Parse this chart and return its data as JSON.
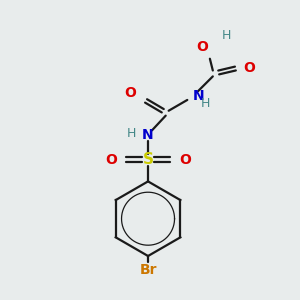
{
  "background_color": "#e8ecec",
  "bond_color": "#1a1a1a",
  "bond_lw": 1.6,
  "figsize": [
    3.0,
    3.0
  ],
  "dpi": 100,
  "colors": {
    "O": "#dd0000",
    "N": "#0000cc",
    "S": "#cccc00",
    "Br": "#cc7700",
    "H": "#448888",
    "C": "#1a1a1a"
  }
}
